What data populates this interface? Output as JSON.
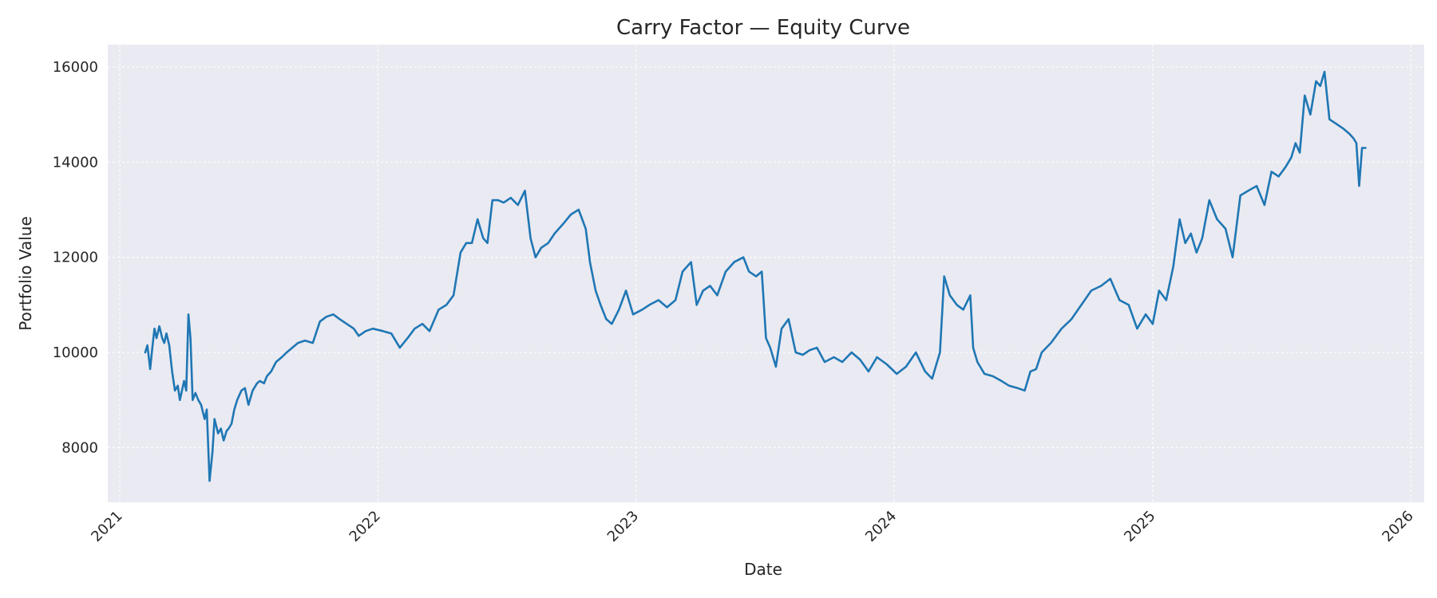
{
  "chart_data": {
    "type": "line",
    "title": "Carry Factor — Equity Curve",
    "xlabel": "Date",
    "ylabel": "Portfolio Value",
    "x_tick_labels": [
      "2021",
      "2022",
      "2023",
      "2024",
      "2025",
      "2026"
    ],
    "y_tick_labels": [
      "8000",
      "10000",
      "12000",
      "14000",
      "16000"
    ],
    "xlim": [
      "2020-12-15",
      "2026-01-20"
    ],
    "ylim": [
      6850,
      16470
    ],
    "grid": true,
    "colors": {
      "line": "#1f77b4",
      "plot_background": "#eaeaf2"
    },
    "series": [
      {
        "x": [
          "2021-02-06",
          "2021-02-09",
          "2021-02-13",
          "2021-02-16",
          "2021-02-19",
          "2021-02-22",
          "2021-02-26",
          "2021-03-02",
          "2021-03-05",
          "2021-03-08",
          "2021-03-12",
          "2021-03-16",
          "2021-03-20",
          "2021-03-24",
          "2021-03-27",
          "2021-04-02",
          "2021-04-05",
          "2021-04-08",
          "2021-04-11",
          "2021-04-14",
          "2021-04-18",
          "2021-04-22",
          "2021-04-26",
          "2021-05-01",
          "2021-05-04",
          "2021-05-08",
          "2021-05-12",
          "2021-05-15",
          "2021-05-20",
          "2021-05-24",
          "2021-05-28",
          "2021-06-01",
          "2021-06-04",
          "2021-06-08",
          "2021-06-12",
          "2021-06-16",
          "2021-06-22",
          "2021-06-27",
          "2021-07-02",
          "2021-07-08",
          "2021-07-14",
          "2021-07-18",
          "2021-07-24",
          "2021-07-28",
          "2021-08-03",
          "2021-08-10",
          "2021-08-18",
          "2021-08-25",
          "2021-09-02",
          "2021-09-10",
          "2021-09-20",
          "2021-10-01",
          "2021-10-11",
          "2021-10-20",
          "2021-10-30",
          "2021-11-08",
          "2021-11-18",
          "2021-11-28",
          "2021-12-05",
          "2021-12-15",
          "2021-12-25",
          "2022-01-08",
          "2022-01-20",
          "2022-02-01",
          "2022-02-12",
          "2022-02-22",
          "2022-03-05",
          "2022-03-15",
          "2022-03-28",
          "2022-04-08",
          "2022-04-18",
          "2022-04-28",
          "2022-05-06",
          "2022-05-14",
          "2022-05-22",
          "2022-05-30",
          "2022-06-05",
          "2022-06-12",
          "2022-06-20",
          "2022-06-28",
          "2022-07-08",
          "2022-07-18",
          "2022-07-28",
          "2022-08-05",
          "2022-08-12",
          "2022-08-20",
          "2022-08-30",
          "2022-09-08",
          "2022-09-20",
          "2022-10-01",
          "2022-10-12",
          "2022-10-22",
          "2022-10-28",
          "2022-11-05",
          "2022-11-12",
          "2022-11-20",
          "2022-11-28",
          "2022-12-08",
          "2022-12-18",
          "2022-12-28",
          "2023-01-10",
          "2023-01-20",
          "2023-02-02",
          "2023-02-14",
          "2023-02-26",
          "2023-03-08",
          "2023-03-20",
          "2023-03-28",
          "2023-04-06",
          "2023-04-16",
          "2023-04-26",
          "2023-05-08",
          "2023-05-20",
          "2023-06-02",
          "2023-06-10",
          "2023-06-20",
          "2023-06-28",
          "2023-07-04",
          "2023-07-10",
          "2023-07-18",
          "2023-07-26",
          "2023-08-05",
          "2023-08-15",
          "2023-08-25",
          "2023-09-04",
          "2023-09-14",
          "2023-09-25",
          "2023-10-08",
          "2023-10-20",
          "2023-11-02",
          "2023-11-14",
          "2023-11-26",
          "2023-12-08",
          "2023-12-22",
          "2024-01-05",
          "2024-01-18",
          "2024-02-01",
          "2024-02-14",
          "2024-02-24",
          "2024-03-02",
          "2024-03-06",
          "2024-03-12",
          "2024-03-20",
          "2024-03-30",
          "2024-04-08",
          "2024-04-18",
          "2024-04-22",
          "2024-04-28",
          "2024-05-08",
          "2024-05-20",
          "2024-06-01",
          "2024-06-12",
          "2024-06-24",
          "2024-07-04",
          "2024-07-12",
          "2024-07-20",
          "2024-07-28",
          "2024-08-10",
          "2024-08-25",
          "2024-09-08",
          "2024-09-22",
          "2024-10-06",
          "2024-10-20",
          "2024-11-02",
          "2024-11-15",
          "2024-11-28",
          "2024-12-10",
          "2024-12-22",
          "2025-01-01",
          "2025-01-10",
          "2025-01-20",
          "2025-01-30",
          "2025-02-08",
          "2025-02-16",
          "2025-02-24",
          "2025-03-04",
          "2025-03-12",
          "2025-03-22",
          "2025-04-02",
          "2025-04-14",
          "2025-04-24",
          "2025-05-05",
          "2025-05-16",
          "2025-05-28",
          "2025-06-08",
          "2025-06-18",
          "2025-06-28",
          "2025-07-08",
          "2025-07-16",
          "2025-07-22",
          "2025-07-28",
          "2025-08-04",
          "2025-08-12",
          "2025-08-20",
          "2025-08-26",
          "2025-09-01",
          "2025-09-08",
          "2025-09-18",
          "2025-09-28",
          "2025-10-06",
          "2025-10-12",
          "2025-10-16",
          "2025-10-20",
          "2025-10-24",
          "2025-10-29"
        ],
        "y": [
          10000,
          10150,
          9650,
          10100,
          10500,
          10300,
          10550,
          10300,
          10200,
          10400,
          10150,
          9600,
          9200,
          9300,
          9000,
          9400,
          9200,
          10800,
          10300,
          9000,
          9150,
          9000,
          8900,
          8600,
          8800,
          7300,
          7900,
          8600,
          8300,
          8400,
          8150,
          8350,
          8400,
          8500,
          8800,
          9000,
          9200,
          9250,
          8900,
          9200,
          9350,
          9400,
          9350,
          9500,
          9600,
          9800,
          9900,
          10000,
          10100,
          10200,
          10250,
          10200,
          10650,
          10750,
          10800,
          10700,
          10600,
          10500,
          10350,
          10450,
          10500,
          10450,
          10400,
          10100,
          10300,
          10500,
          10600,
          10450,
          10900,
          11000,
          11200,
          12100,
          12300,
          12300,
          12800,
          12400,
          12300,
          13200,
          13200,
          13150,
          13250,
          13100,
          13400,
          12400,
          12000,
          12200,
          12300,
          12500,
          12700,
          12900,
          13000,
          12600,
          11900,
          11300,
          11000,
          10700,
          10600,
          10900,
          11300,
          10800,
          10900,
          11000,
          11100,
          10950,
          11100,
          11700,
          11900,
          11000,
          11300,
          11400,
          11200,
          11700,
          11900,
          12000,
          11700,
          11600,
          11700,
          10300,
          10100,
          9700,
          10500,
          10700,
          10000,
          9950,
          10050,
          10100,
          9800,
          9900,
          9800,
          10000,
          9850,
          9600,
          9900,
          9750,
          9550,
          9700,
          10000,
          9600,
          9450,
          9800,
          10000,
          11600,
          11200,
          11000,
          10900,
          11200,
          10100,
          9800,
          9550,
          9500,
          9400,
          9300,
          9250,
          9200,
          9600,
          9650,
          10000,
          10200,
          10500,
          10700,
          11000,
          11300,
          11400,
          11550,
          11100,
          11000,
          10500,
          10800,
          10600,
          11300,
          11100,
          11800,
          12800,
          12300,
          12500,
          12100,
          12400,
          13200,
          12800,
          12600,
          12000,
          13300,
          13400,
          13500,
          13100,
          13800,
          13700,
          13900,
          14100,
          14400,
          14200,
          15400,
          15000,
          15700,
          15600,
          15900,
          14900,
          14800,
          14700,
          14600,
          14500,
          14400,
          13500,
          14300,
          14300
        ]
      }
    ]
  }
}
